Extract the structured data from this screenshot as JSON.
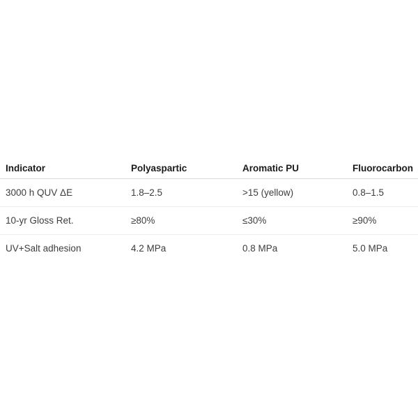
{
  "table": {
    "columns": [
      "Indicator",
      "Polyaspartic",
      "Aromatic PU",
      "Fluorocarbon"
    ],
    "rows": [
      [
        "3000 h QUV ΔE",
        "1.8–2.5",
        ">15 (yellow)",
        "0.8–1.5"
      ],
      [
        "10-yr Gloss Ret.",
        "≥80%",
        "≤30%",
        "≥90%"
      ],
      [
        "UV+Salt adhesion",
        "4.2 MPa",
        "0.8 MPa",
        "5.0 MPa"
      ]
    ]
  },
  "colors": {
    "background": "#ffffff",
    "header_text": "#1a1a1a",
    "body_text": "#3d3d3d",
    "header_border": "#d9d9d9",
    "row_border": "#ececec"
  }
}
